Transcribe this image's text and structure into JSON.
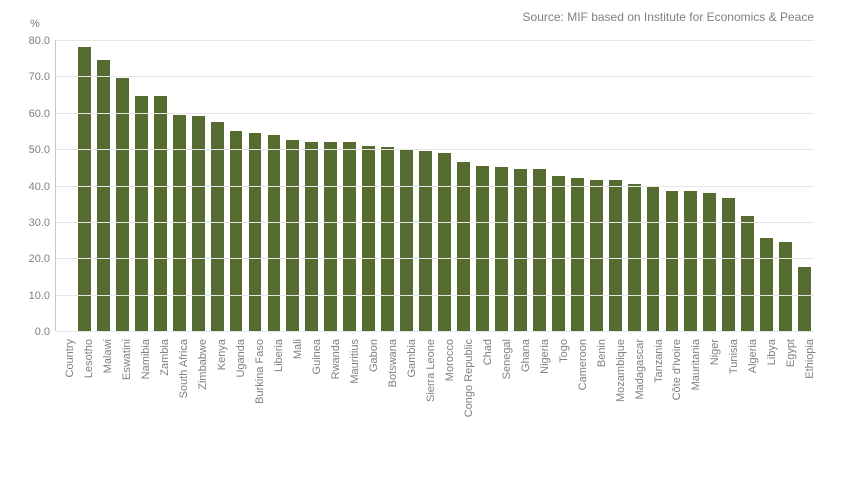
{
  "source_text": "Source: MIF based on Institute for Economics & Peace",
  "chart": {
    "type": "bar",
    "y_unit_label": "%",
    "ylim": [
      0,
      80
    ],
    "ytick_step": 10,
    "yticks": [
      0.0,
      10.0,
      20.0,
      30.0,
      40.0,
      50.0,
      60.0,
      70.0,
      80.0
    ],
    "bar_color": "#556b2f",
    "grid_color": "#e6e6e6",
    "axis_color": "#c8c8c8",
    "background_color": "#ffffff",
    "text_color": "#808080",
    "label_fontsize": 11,
    "bar_width_ratio": 0.68,
    "first_category_label": "Country",
    "categories": [
      "Lesotho",
      "Malawi",
      "Eswatini",
      "Namibia",
      "Zambia",
      "South Africa",
      "Zimbabwe",
      "Kenya",
      "Uganda",
      "Burkina Faso",
      "Liberia",
      "Mali",
      "Guinea",
      "Rwanda",
      "Mauritius",
      "Gabon",
      "Botswana",
      "Gambia",
      "Sierra Leone",
      "Morocco",
      "Congo Republic",
      "Chad",
      "Senegal",
      "Ghana",
      "Nigeria",
      "Togo",
      "Cameroon",
      "Benin",
      "Mozambique",
      "Madagascar",
      "Tanzania",
      "Côte d'Ivoire",
      "Mauritania",
      "Niger",
      "Tunisia",
      "Algeria",
      "Libya",
      "Egypt",
      "Ethiopia"
    ],
    "values": [
      78.0,
      74.5,
      69.5,
      64.5,
      64.5,
      59.5,
      59.0,
      57.5,
      55.0,
      54.5,
      54.0,
      52.5,
      52.0,
      52.0,
      52.0,
      51.0,
      50.5,
      50.0,
      49.5,
      49.0,
      46.5,
      45.5,
      45.0,
      44.5,
      44.5,
      42.5,
      42.0,
      41.5,
      41.5,
      40.5,
      39.5,
      38.5,
      38.5,
      38.0,
      36.5,
      31.5,
      25.5,
      24.5,
      17.5,
      17.5
    ]
  }
}
